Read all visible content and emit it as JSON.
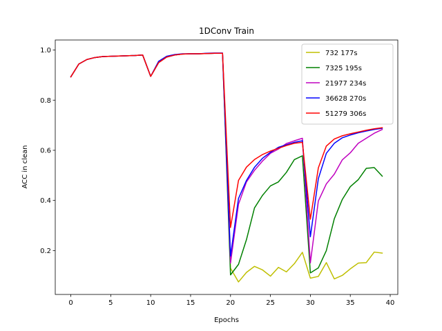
{
  "chart_data": {
    "type": "line",
    "title": "1DConv Train",
    "xlabel": "Epochs",
    "ylabel": "ACC in clean",
    "xlim": [
      -1.95,
      40.95
    ],
    "ylim": [
      0.025,
      1.04
    ],
    "xticks": [
      0,
      5,
      10,
      15,
      20,
      25,
      30,
      35,
      40
    ],
    "xtick_labels": [
      "0",
      "5",
      "10",
      "15",
      "20",
      "25",
      "30",
      "35",
      "40"
    ],
    "yticks": [
      0.2,
      0.4,
      0.6,
      0.8,
      1.0
    ],
    "ytick_labels": [
      "0.2",
      "0.4",
      "0.6",
      "0.8",
      "1.0"
    ],
    "grid": false,
    "legend_position": "top-right",
    "x": [
      0,
      1,
      2,
      3,
      4,
      5,
      6,
      7,
      8,
      9,
      10,
      11,
      12,
      13,
      14,
      15,
      16,
      17,
      18,
      19,
      20,
      21,
      22,
      23,
      24,
      25,
      26,
      27,
      28,
      29,
      30,
      31,
      32,
      33,
      34,
      35,
      36,
      37,
      38,
      39
    ],
    "series": [
      {
        "name": "732 177s",
        "color": "#bfbf00",
        "values": [
          0.893,
          0.944,
          0.962,
          0.97,
          0.974,
          0.975,
          0.976,
          0.977,
          0.978,
          0.98,
          0.895,
          0.95,
          0.972,
          0.98,
          0.984,
          0.985,
          0.985,
          0.986,
          0.987,
          0.987,
          0.13,
          0.075,
          0.113,
          0.137,
          0.123,
          0.098,
          0.133,
          0.115,
          0.148,
          0.193,
          0.09,
          0.097,
          0.152,
          0.087,
          0.101,
          0.127,
          0.15,
          0.152,
          0.194,
          0.19
        ]
      },
      {
        "name": "7325 195s",
        "color": "#008000",
        "values": [
          0.893,
          0.944,
          0.962,
          0.97,
          0.974,
          0.975,
          0.976,
          0.977,
          0.978,
          0.98,
          0.895,
          0.95,
          0.972,
          0.98,
          0.984,
          0.985,
          0.985,
          0.986,
          0.987,
          0.987,
          0.103,
          0.145,
          0.244,
          0.37,
          0.42,
          0.458,
          0.474,
          0.512,
          0.563,
          0.578,
          0.111,
          0.131,
          0.2,
          0.327,
          0.404,
          0.455,
          0.483,
          0.528,
          0.531,
          0.497
        ]
      },
      {
        "name": "21977 234s",
        "color": "#bf00bf",
        "values": [
          0.893,
          0.944,
          0.962,
          0.97,
          0.974,
          0.975,
          0.976,
          0.977,
          0.978,
          0.98,
          0.895,
          0.95,
          0.972,
          0.98,
          0.984,
          0.985,
          0.985,
          0.986,
          0.987,
          0.987,
          0.15,
          0.385,
          0.474,
          0.52,
          0.557,
          0.588,
          0.605,
          0.627,
          0.638,
          0.648,
          0.151,
          0.398,
          0.466,
          0.505,
          0.562,
          0.59,
          0.628,
          0.648,
          0.668,
          0.683
        ]
      },
      {
        "name": "36628 270s",
        "color": "#0000ff",
        "values": [
          0.893,
          0.944,
          0.962,
          0.97,
          0.974,
          0.975,
          0.976,
          0.977,
          0.978,
          0.98,
          0.895,
          0.955,
          0.975,
          0.982,
          0.985,
          0.985,
          0.985,
          0.987,
          0.988,
          0.988,
          0.178,
          0.408,
          0.48,
          0.532,
          0.568,
          0.592,
          0.612,
          0.622,
          0.632,
          0.638,
          0.255,
          0.487,
          0.588,
          0.628,
          0.65,
          0.661,
          0.67,
          0.677,
          0.683,
          0.688
        ]
      },
      {
        "name": "51279 306s",
        "color": "#ff0000",
        "values": [
          0.893,
          0.944,
          0.962,
          0.97,
          0.974,
          0.975,
          0.976,
          0.977,
          0.978,
          0.98,
          0.895,
          0.95,
          0.972,
          0.98,
          0.984,
          0.985,
          0.985,
          0.986,
          0.987,
          0.987,
          0.292,
          0.48,
          0.533,
          0.563,
          0.583,
          0.597,
          0.608,
          0.619,
          0.628,
          0.632,
          0.325,
          0.53,
          0.617,
          0.645,
          0.658,
          0.666,
          0.673,
          0.68,
          0.686,
          0.69
        ]
      }
    ]
  }
}
